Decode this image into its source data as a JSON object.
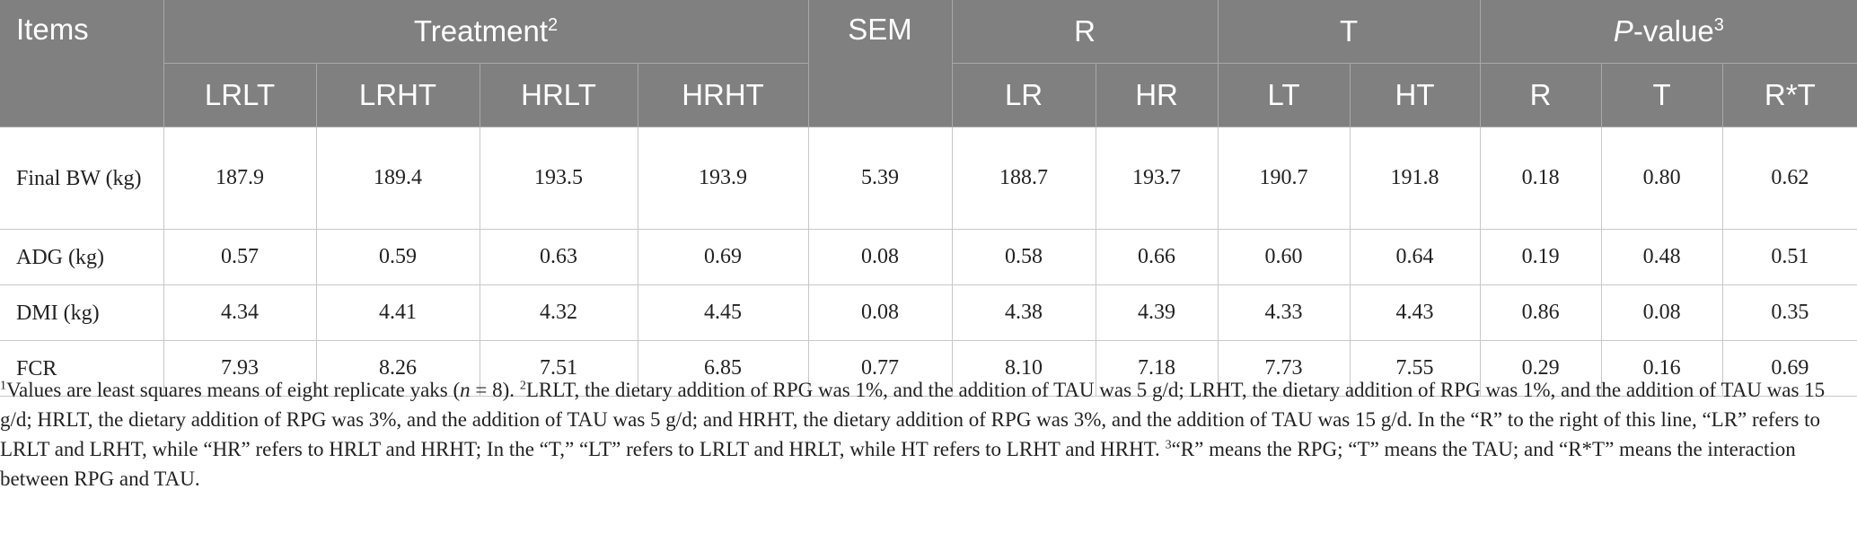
{
  "header": {
    "items": "Items",
    "treatment": "Treatment",
    "treatment_sup": "2",
    "sem": "SEM",
    "r": "R",
    "t": "T",
    "pvalue_p": "P",
    "pvalue_rest": "-value",
    "pvalue_sup": "3",
    "sub": [
      "LRLT",
      "LRHT",
      "HRLT",
      "HRHT",
      "LR",
      "HR",
      "LT",
      "HT",
      "R",
      "T",
      "R*T"
    ]
  },
  "rows": [
    {
      "label": "Final BW (kg)",
      "values": [
        "187.9",
        "189.4",
        "193.5",
        "193.9",
        "5.39",
        "188.7",
        "193.7",
        "190.7",
        "191.8",
        "0.18",
        "0.80",
        "0.62"
      ]
    },
    {
      "label": "ADG (kg)",
      "values": [
        "0.57",
        "0.59",
        "0.63",
        "0.69",
        "0.08",
        "0.58",
        "0.66",
        "0.60",
        "0.64",
        "0.19",
        "0.48",
        "0.51"
      ]
    },
    {
      "label": "DMI (kg)",
      "values": [
        "4.34",
        "4.41",
        "4.32",
        "4.45",
        "0.08",
        "4.38",
        "4.39",
        "4.33",
        "4.43",
        "0.86",
        "0.08",
        "0.35"
      ]
    },
    {
      "label": "FCR",
      "values": [
        "7.93",
        "8.26",
        "7.51",
        "6.85",
        "0.77",
        "8.10",
        "7.18",
        "7.73",
        "7.55",
        "0.29",
        "0.16",
        "0.69"
      ]
    }
  ],
  "footnote": {
    "s1": "1",
    "t1a": "Values are least squares means of eight replicate yaks (",
    "t1n": "n",
    "t1b": " = 8). ",
    "s2": "2",
    "t2": "LRLT, the dietary addition of RPG was 1%, and the addition of TAU was 5 g/d; LRHT, the dietary addition of RPG was 1%, and the addition of TAU was 15 g/d; HRLT, the dietary addition of RPG was 3%, and the addition of TAU was 5 g/d; and HRHT, the dietary addition of RPG was 3%, and the addition of TAU was 15 g/d. In the “R” to the right of this line, “LR” refers to LRLT and LRHT, while “HR” refers to HRLT and HRHT; In the “T,” “LT” refers to LRLT and HRLT, while HT refers to LRHT and HRHT. ",
    "s3": "3",
    "t3": "“R” means the RPG; “T” means the TAU; and “R*T” means the interaction between RPG and TAU."
  }
}
